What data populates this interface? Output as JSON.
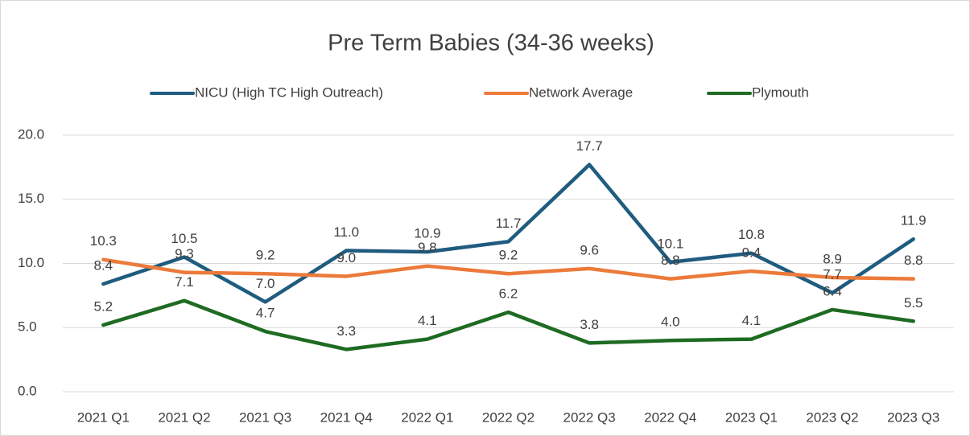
{
  "chart_data": {
    "type": "line",
    "title": "Pre Term Babies (34-36 weeks)",
    "categories": [
      "2021 Q1",
      "2021 Q2",
      "2021 Q3",
      "2021 Q4",
      "2022 Q1",
      "2022 Q2",
      "2022 Q3",
      "2022 Q4",
      "2023 Q1",
      "2023 Q2",
      "2023 Q3"
    ],
    "series": [
      {
        "name": "NICU (High TC High Outreach)",
        "color": "#1f5c7f",
        "values": [
          8.4,
          10.5,
          7.0,
          11.0,
          10.9,
          11.7,
          17.7,
          10.1,
          10.8,
          7.7,
          11.9
        ],
        "value_labels": [
          "8.4",
          "10.5",
          "7.0",
          "11.0",
          "10.9",
          "11.7",
          "17.7",
          "10.1",
          "10.8",
          "7.7",
          "11.9"
        ]
      },
      {
        "name": "Network Average",
        "color": "#ec7a3a",
        "values": [
          10.3,
          9.3,
          9.2,
          9.0,
          9.8,
          9.2,
          9.6,
          8.8,
          9.4,
          8.9,
          8.8
        ],
        "value_labels": [
          "10.3",
          "9.3",
          "9.2",
          "9.0",
          "9.8",
          "9.2",
          "9.6",
          "8.8",
          "9.4",
          "8.9",
          "8.8"
        ]
      },
      {
        "name": "Plymouth",
        "color": "#1e6b22",
        "values": [
          5.2,
          7.1,
          4.7,
          3.3,
          4.1,
          6.2,
          3.8,
          4.0,
          4.1,
          6.4,
          5.5
        ],
        "value_labels": [
          "5.2",
          "7.1",
          "4.7",
          "3.3",
          "4.1",
          "6.2",
          "3.8",
          "4.0",
          "4.1",
          "6.4",
          "5.5"
        ]
      }
    ],
    "ylim": [
      0,
      20
    ],
    "yticks": [
      {
        "value": 0,
        "label": "0.0"
      },
      {
        "value": 5,
        "label": "5.0"
      },
      {
        "value": 10,
        "label": "10.0"
      },
      {
        "value": 15,
        "label": "15.0"
      },
      {
        "value": 20,
        "label": "20.0"
      }
    ],
    "grid": true,
    "legend": "top"
  }
}
